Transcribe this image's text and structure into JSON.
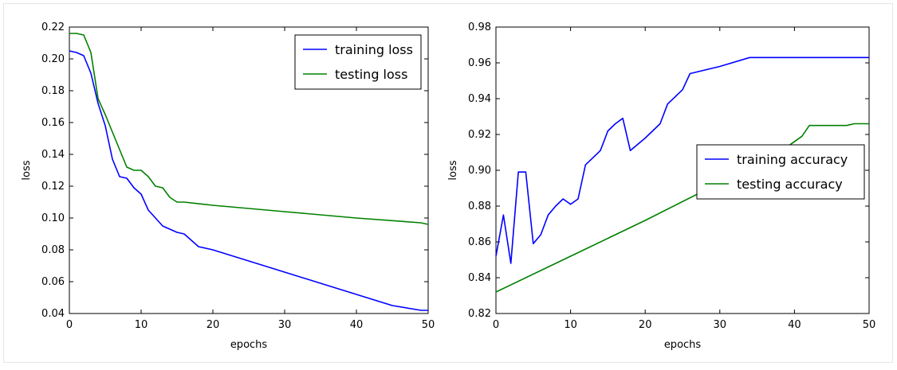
{
  "chart_data": [
    {
      "type": "line",
      "title": "",
      "xlabel": "epochs",
      "ylabel": "loss",
      "xlim": [
        0,
        50
      ],
      "ylim": [
        0.04,
        0.22
      ],
      "xticks": [
        "0",
        "10",
        "20",
        "30",
        "40",
        "50"
      ],
      "yticks": [
        "0.04",
        "0.06",
        "0.08",
        "0.10",
        "0.12",
        "0.14",
        "0.16",
        "0.18",
        "0.20",
        "0.22"
      ],
      "grid": false,
      "legend_position": "top-right",
      "series": [
        {
          "name": "training loss",
          "color": "#0000ff",
          "x": [
            0,
            1,
            2,
            3,
            4,
            5,
            6,
            7,
            8,
            9,
            10,
            11,
            12,
            13,
            14,
            15,
            16,
            17,
            18,
            20,
            25,
            30,
            35,
            40,
            45,
            49,
            50
          ],
          "y": [
            0.205,
            0.204,
            0.202,
            0.191,
            0.172,
            0.158,
            0.137,
            0.126,
            0.125,
            0.119,
            0.115,
            0.105,
            0.1,
            0.095,
            0.093,
            0.091,
            0.09,
            0.086,
            0.082,
            0.08,
            0.073,
            0.066,
            0.059,
            0.052,
            0.045,
            0.042,
            0.042
          ]
        },
        {
          "name": "testing loss",
          "color": "#008000",
          "x": [
            0,
            1,
            2,
            3,
            4,
            5,
            6,
            7,
            8,
            9,
            10,
            11,
            12,
            13,
            14,
            15,
            16,
            20,
            30,
            40,
            49,
            50
          ],
          "y": [
            0.216,
            0.216,
            0.215,
            0.204,
            0.175,
            0.165,
            0.154,
            0.143,
            0.132,
            0.13,
            0.13,
            0.126,
            0.12,
            0.119,
            0.113,
            0.11,
            0.11,
            0.108,
            0.104,
            0.1,
            0.097,
            0.096
          ]
        }
      ]
    },
    {
      "type": "line",
      "title": "",
      "xlabel": "epochs",
      "ylabel": "loss",
      "xlim": [
        0,
        50
      ],
      "ylim": [
        0.82,
        0.98
      ],
      "xticks": [
        "0",
        "10",
        "20",
        "30",
        "40",
        "50"
      ],
      "yticks": [
        "0.82",
        "0.84",
        "0.86",
        "0.88",
        "0.90",
        "0.92",
        "0.94",
        "0.96",
        "0.98"
      ],
      "grid": false,
      "legend_position": "center-right",
      "series": [
        {
          "name": "training accuracy",
          "color": "#0000ff",
          "x": [
            0,
            1,
            2,
            3,
            4,
            5,
            6,
            7,
            8,
            9,
            10,
            11,
            12,
            13,
            14,
            15,
            16,
            17,
            18,
            20,
            22,
            23,
            25,
            26,
            30,
            34,
            40,
            50
          ],
          "y": [
            0.852,
            0.875,
            0.848,
            0.899,
            0.899,
            0.859,
            0.864,
            0.875,
            0.88,
            0.884,
            0.881,
            0.884,
            0.903,
            0.907,
            0.911,
            0.922,
            0.926,
            0.929,
            0.911,
            0.918,
            0.926,
            0.937,
            0.945,
            0.954,
            0.958,
            0.963,
            0.963,
            0.963
          ]
        },
        {
          "name": "testing accuracy",
          "color": "#008000",
          "x": [
            0,
            10,
            20,
            30,
            39,
            41,
            42,
            45,
            47,
            48,
            50
          ],
          "y": [
            0.832,
            0.852,
            0.872,
            0.893,
            0.913,
            0.919,
            0.925,
            0.925,
            0.925,
            0.926,
            0.926
          ]
        }
      ]
    }
  ]
}
